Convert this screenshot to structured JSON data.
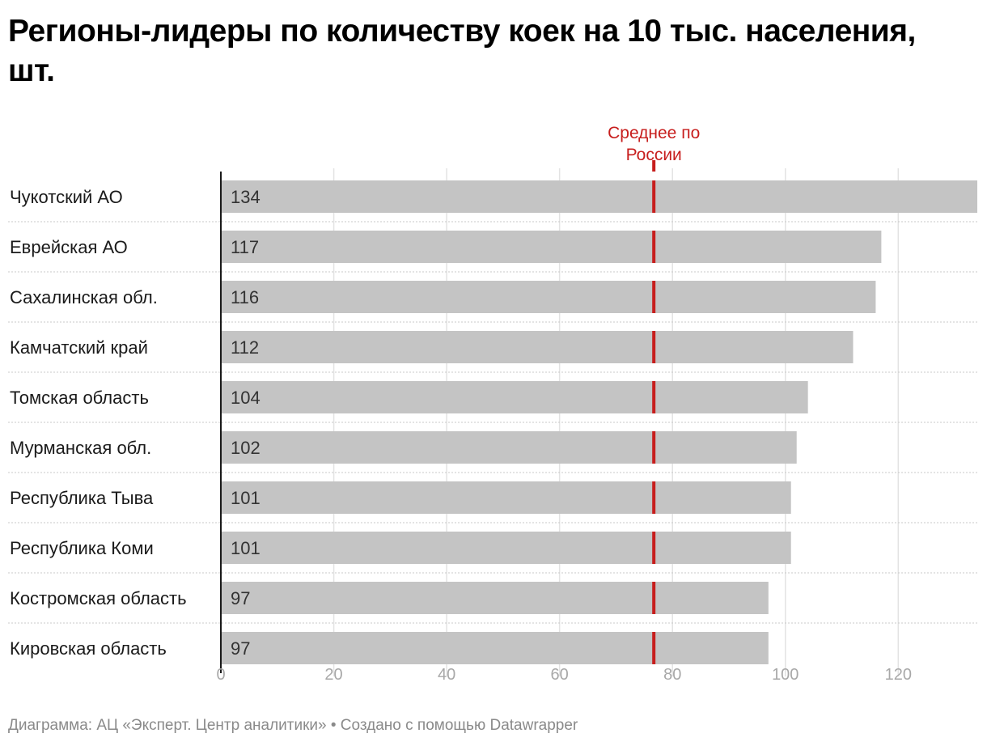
{
  "title": "Регионы-лидеры по количеству коек на 10 тыс. населения, шт.",
  "footer": "Диаграмма: АЦ «Эксперт. Центр аналитики» • Создано с помощью Datawrapper",
  "colors": {
    "bar": "#c4c4c4",
    "reference_line": "#c71e1d",
    "grid": "#e3e3e3",
    "axis": "#1a1a1a"
  },
  "chart_data": {
    "type": "bar",
    "orientation": "horizontal",
    "title": "Регионы-лидеры по количеству коек на 10 тыс. населения, шт.",
    "categories": [
      "Чукотский АО",
      "Еврейская АО",
      "Сахалинская обл.",
      "Камчатский край",
      "Томская область",
      "Мурманская обл.",
      "Республика Тыва",
      "Республика Коми",
      "Костромская область",
      "Кировская область"
    ],
    "values": [
      134,
      117,
      116,
      112,
      104,
      102,
      101,
      101,
      97,
      97
    ],
    "data_labels": [
      "134",
      "117",
      "116",
      "112",
      "104",
      "102",
      "101",
      "101",
      "97",
      "97"
    ],
    "xlim": [
      0,
      134
    ],
    "xticks": [
      0,
      20,
      40,
      60,
      80,
      100,
      120
    ],
    "xtick_labels": [
      "0",
      "20",
      "40",
      "60",
      "80",
      "100",
      "120"
    ],
    "reference_line": {
      "value": 76.7,
      "label_lines": [
        "Среднее по",
        "России"
      ]
    },
    "xlabel": "",
    "ylabel": "",
    "grid": true
  }
}
